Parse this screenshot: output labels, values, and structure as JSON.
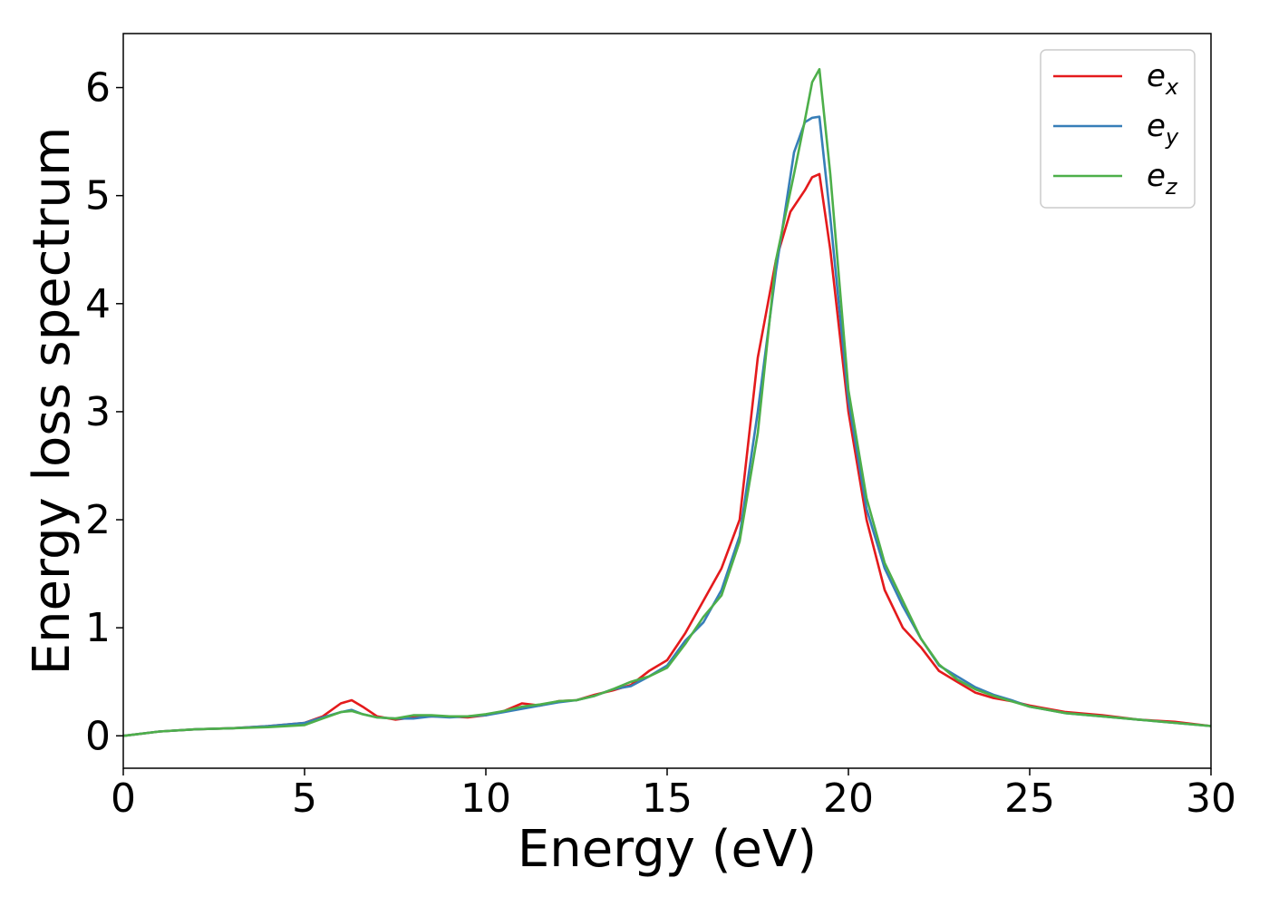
{
  "chart_data": {
    "type": "line",
    "xlabel": "Energy (eV)",
    "ylabel": "Energy loss spectrum",
    "xlim": [
      0,
      30
    ],
    "ylim": [
      -0.3,
      6.5
    ],
    "xticks": [
      "0",
      "5",
      "10",
      "15",
      "20",
      "25",
      "30"
    ],
    "yticks": [
      "0",
      "1",
      "2",
      "3",
      "4",
      "5",
      "6"
    ],
    "grid": false,
    "legend_position": "top-right",
    "series": [
      {
        "name": "e",
        "subscript": "x",
        "color": "#e41a1c",
        "points": [
          [
            0,
            0
          ],
          [
            1,
            0.04
          ],
          [
            2,
            0.06
          ],
          [
            3,
            0.07
          ],
          [
            4,
            0.09
          ],
          [
            5,
            0.12
          ],
          [
            5.5,
            0.18
          ],
          [
            6,
            0.3
          ],
          [
            6.3,
            0.33
          ],
          [
            6.6,
            0.27
          ],
          [
            7,
            0.18
          ],
          [
            7.5,
            0.15
          ],
          [
            8,
            0.17
          ],
          [
            8.5,
            0.18
          ],
          [
            9,
            0.18
          ],
          [
            9.5,
            0.17
          ],
          [
            10,
            0.19
          ],
          [
            10.5,
            0.23
          ],
          [
            11,
            0.3
          ],
          [
            11.5,
            0.28
          ],
          [
            12,
            0.32
          ],
          [
            12.5,
            0.33
          ],
          [
            13,
            0.38
          ],
          [
            13.5,
            0.42
          ],
          [
            14,
            0.47
          ],
          [
            14.5,
            0.6
          ],
          [
            15,
            0.7
          ],
          [
            15.5,
            0.95
          ],
          [
            16,
            1.25
          ],
          [
            16.5,
            1.55
          ],
          [
            17,
            2.0
          ],
          [
            17.5,
            3.5
          ],
          [
            18,
            4.4
          ],
          [
            18.4,
            4.85
          ],
          [
            18.8,
            5.05
          ],
          [
            19,
            5.17
          ],
          [
            19.2,
            5.2
          ],
          [
            19.5,
            4.5
          ],
          [
            20,
            3.0
          ],
          [
            20.5,
            2.0
          ],
          [
            21,
            1.35
          ],
          [
            21.5,
            1.0
          ],
          [
            22,
            0.82
          ],
          [
            22.5,
            0.6
          ],
          [
            23,
            0.5
          ],
          [
            23.5,
            0.4
          ],
          [
            24,
            0.35
          ],
          [
            24.5,
            0.32
          ],
          [
            25,
            0.28
          ],
          [
            26,
            0.22
          ],
          [
            27,
            0.19
          ],
          [
            28,
            0.15
          ],
          [
            29,
            0.13
          ],
          [
            30,
            0.09
          ]
        ]
      },
      {
        "name": "e",
        "subscript": "y",
        "color": "#377eb8",
        "points": [
          [
            0,
            0
          ],
          [
            1,
            0.04
          ],
          [
            2,
            0.06
          ],
          [
            3,
            0.07
          ],
          [
            4,
            0.09
          ],
          [
            5,
            0.12
          ],
          [
            5.5,
            0.17
          ],
          [
            6,
            0.22
          ],
          [
            6.3,
            0.24
          ],
          [
            6.6,
            0.2
          ],
          [
            7,
            0.17
          ],
          [
            7.5,
            0.16
          ],
          [
            8,
            0.16
          ],
          [
            8.5,
            0.18
          ],
          [
            9,
            0.17
          ],
          [
            9.5,
            0.18
          ],
          [
            10,
            0.19
          ],
          [
            10.5,
            0.22
          ],
          [
            11,
            0.25
          ],
          [
            11.5,
            0.28
          ],
          [
            12,
            0.31
          ],
          [
            12.5,
            0.33
          ],
          [
            13,
            0.37
          ],
          [
            13.5,
            0.43
          ],
          [
            14,
            0.46
          ],
          [
            14.5,
            0.55
          ],
          [
            15,
            0.65
          ],
          [
            15.5,
            0.88
          ],
          [
            16,
            1.05
          ],
          [
            16.5,
            1.35
          ],
          [
            17,
            1.85
          ],
          [
            17.5,
            3.0
          ],
          [
            18,
            4.3
          ],
          [
            18.5,
            5.4
          ],
          [
            18.8,
            5.68
          ],
          [
            19,
            5.72
          ],
          [
            19.2,
            5.73
          ],
          [
            19.5,
            4.8
          ],
          [
            20,
            3.1
          ],
          [
            20.5,
            2.1
          ],
          [
            21,
            1.55
          ],
          [
            21.5,
            1.2
          ],
          [
            22,
            0.9
          ],
          [
            22.5,
            0.65
          ],
          [
            23,
            0.55
          ],
          [
            23.5,
            0.45
          ],
          [
            24,
            0.38
          ],
          [
            24.5,
            0.33
          ],
          [
            25,
            0.27
          ],
          [
            26,
            0.21
          ],
          [
            27,
            0.18
          ],
          [
            28,
            0.15
          ],
          [
            29,
            0.12
          ],
          [
            30,
            0.09
          ]
        ]
      },
      {
        "name": "e",
        "subscript": "z",
        "color": "#4daf4a",
        "points": [
          [
            0,
            0
          ],
          [
            1,
            0.04
          ],
          [
            2,
            0.06
          ],
          [
            3,
            0.07
          ],
          [
            4,
            0.08
          ],
          [
            5,
            0.1
          ],
          [
            5.5,
            0.16
          ],
          [
            6,
            0.22
          ],
          [
            6.3,
            0.23
          ],
          [
            6.6,
            0.2
          ],
          [
            7,
            0.17
          ],
          [
            7.5,
            0.16
          ],
          [
            8,
            0.19
          ],
          [
            8.5,
            0.19
          ],
          [
            9,
            0.18
          ],
          [
            9.5,
            0.18
          ],
          [
            10,
            0.2
          ],
          [
            10.5,
            0.23
          ],
          [
            11,
            0.27
          ],
          [
            11.5,
            0.29
          ],
          [
            12,
            0.32
          ],
          [
            12.5,
            0.33
          ],
          [
            13,
            0.37
          ],
          [
            13.5,
            0.43
          ],
          [
            14,
            0.5
          ],
          [
            14.5,
            0.55
          ],
          [
            15,
            0.63
          ],
          [
            15.5,
            0.85
          ],
          [
            16,
            1.1
          ],
          [
            16.5,
            1.3
          ],
          [
            17,
            1.8
          ],
          [
            17.5,
            2.8
          ],
          [
            18,
            4.4
          ],
          [
            18.5,
            5.2
          ],
          [
            18.8,
            5.7
          ],
          [
            19,
            6.05
          ],
          [
            19.2,
            6.17
          ],
          [
            19.5,
            5.2
          ],
          [
            20,
            3.2
          ],
          [
            20.5,
            2.2
          ],
          [
            21,
            1.6
          ],
          [
            21.5,
            1.25
          ],
          [
            22,
            0.9
          ],
          [
            22.5,
            0.66
          ],
          [
            23,
            0.52
          ],
          [
            23.5,
            0.43
          ],
          [
            24,
            0.37
          ],
          [
            24.5,
            0.32
          ],
          [
            25,
            0.27
          ],
          [
            26,
            0.21
          ],
          [
            27,
            0.18
          ],
          [
            28,
            0.15
          ],
          [
            29,
            0.12
          ],
          [
            30,
            0.09
          ]
        ]
      }
    ]
  }
}
